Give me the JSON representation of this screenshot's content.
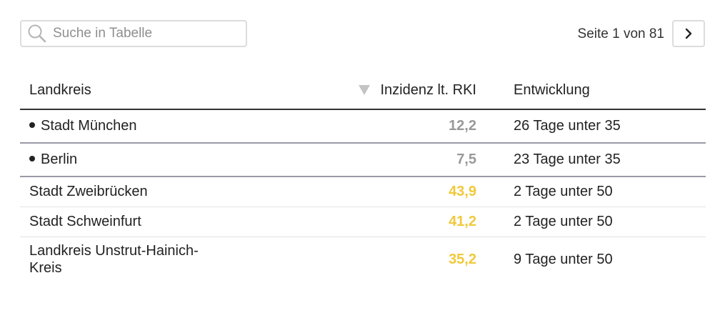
{
  "search": {
    "placeholder": "Suche in Tabelle",
    "icon": "search-icon"
  },
  "pagination": {
    "text": "Seite 1 von 81",
    "next_icon": "chevron-right-icon"
  },
  "table": {
    "columns": [
      {
        "label": "Landkreis"
      },
      {
        "label": "Inzidenz lt. RKI",
        "sort_icon": "sort-down-icon"
      },
      {
        "label": "Entwicklung"
      }
    ],
    "rows": [
      {
        "name": "Stadt München",
        "pinned": true,
        "incidence": "12,2",
        "development": "26 Tage unter 35",
        "color": "#999999"
      },
      {
        "name": "Berlin",
        "pinned": true,
        "incidence": "7,5",
        "development": "23 Tage unter 35",
        "color": "#999999"
      },
      {
        "name": "Stadt Zweibrücken",
        "pinned": false,
        "incidence": "43,9",
        "development": "2 Tage unter 50",
        "color": "#f0c93a"
      },
      {
        "name": "Stadt Schweinfurt",
        "pinned": false,
        "incidence": "41,2",
        "development": "2 Tage unter 50",
        "color": "#f0c93a"
      },
      {
        "name": "Landkreis Unstrut-Hainich-Kreis",
        "pinned": false,
        "incidence": "35,2",
        "development": "9 Tage unter 50",
        "color": "#f0c93a"
      }
    ]
  }
}
